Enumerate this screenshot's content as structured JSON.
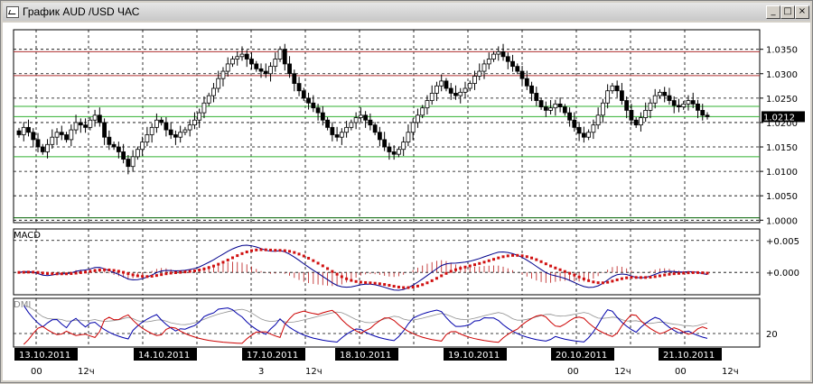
{
  "window": {
    "title": "График AUD /USD ЧАС",
    "minimize_label": "_",
    "maximize_label": "□",
    "close_label": "×"
  },
  "current_price": "1.0212",
  "macd_label": "MACD",
  "dmi_label": "DMI",
  "chart_data": [
    {
      "type": "candlestick",
      "title": "",
      "ylim": [
        0.9995,
        1.039
      ],
      "y_ticks": [
        "1.0350",
        "1.0300",
        "1.0250",
        "1.0200",
        "1.0150",
        "1.0100",
        "1.0050",
        "1.0000"
      ],
      "horizontal_lines": [
        {
          "value": 1.0345,
          "color": "#b03030"
        },
        {
          "value": 1.0296,
          "color": "#b03030"
        },
        {
          "value": 1.0233,
          "color": "#30b030"
        },
        {
          "value": 1.0212,
          "color": "#30b030"
        },
        {
          "value": 1.013,
          "color": "#30b030"
        },
        {
          "value": 1.0005,
          "color": "#006000"
        }
      ],
      "close_series": [
        1.0175,
        1.019,
        1.018,
        1.0165,
        1.015,
        1.014,
        1.0155,
        1.017,
        1.018,
        1.0175,
        1.0165,
        1.0185,
        1.02,
        1.0195,
        1.019,
        1.0205,
        1.0215,
        1.02,
        1.017,
        1.0155,
        1.015,
        1.014,
        1.0125,
        1.011,
        1.013,
        1.0145,
        1.016,
        1.0175,
        1.019,
        1.0205,
        1.02,
        1.0185,
        1.0175,
        1.017,
        1.018,
        1.0185,
        1.0195,
        1.0205,
        1.022,
        1.024,
        1.0255,
        1.027,
        1.029,
        1.0305,
        1.032,
        1.033,
        1.0335,
        1.034,
        1.033,
        1.032,
        1.031,
        1.0305,
        1.03,
        1.0315,
        1.033,
        1.035,
        1.032,
        1.03,
        1.028,
        1.0265,
        1.025,
        1.024,
        1.023,
        1.022,
        1.0205,
        1.019,
        1.0175,
        1.017,
        1.018,
        1.019,
        1.02,
        1.021,
        1.0215,
        1.0205,
        1.0195,
        1.018,
        1.0165,
        1.015,
        1.014,
        1.0135,
        1.0145,
        1.016,
        1.018,
        1.02,
        1.0215,
        1.023,
        1.0245,
        1.026,
        1.0275,
        1.0285,
        1.027,
        1.026,
        1.0255,
        1.0262,
        1.027,
        1.028,
        1.0295,
        1.0305,
        1.032,
        1.033,
        1.034,
        1.0345,
        1.0335,
        1.0325,
        1.0315,
        1.0305,
        1.029,
        1.0275,
        1.026,
        1.0245,
        1.0232,
        1.0225,
        1.023,
        1.0238,
        1.0232,
        1.022,
        1.0205,
        1.019,
        1.0178,
        1.017,
        1.018,
        1.0195,
        1.0215,
        1.024,
        1.0265,
        1.0275,
        1.0265,
        1.0245,
        1.0225,
        1.0205,
        1.0195,
        1.021,
        1.0225,
        1.024,
        1.0255,
        1.0262,
        1.0255,
        1.0245,
        1.0235,
        1.0232,
        1.0238,
        1.0245,
        1.0238,
        1.0225,
        1.0215,
        1.0212
      ]
    },
    {
      "type": "line",
      "title": "MACD",
      "ylim": [
        -0.0035,
        0.0068
      ],
      "y_ticks": [
        "+0.005",
        "+0.000"
      ],
      "series": [
        {
          "name": "MACD"
        }
      ]
    },
    {
      "type": "line",
      "title": "DMI",
      "y_ticks": [
        "20"
      ],
      "x_labels": [
        {
          "date": "13.10.2011",
          "ticks": [
            "00",
            "12"
          ]
        },
        {
          "date": "14.10.2011",
          "ticks": []
        },
        {
          "date": "17.10.2011",
          "ticks": [
            "3",
            "12"
          ]
        },
        {
          "date": "18.10.2011",
          "ticks": []
        },
        {
          "date": "19.10.2011",
          "ticks": []
        },
        {
          "date": "20.10.2011",
          "ticks": [
            "00",
            "12"
          ]
        },
        {
          "date": "21.10.2011",
          "ticks": [
            "00",
            "12"
          ]
        }
      ]
    }
  ]
}
